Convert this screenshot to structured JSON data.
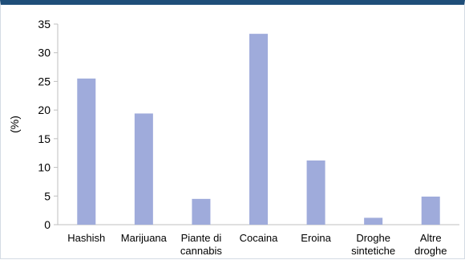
{
  "chart_data": {
    "type": "bar",
    "title": "",
    "xlabel": "",
    "ylabel": "(%)",
    "ylim": [
      0,
      35
    ],
    "yticks": [
      0,
      5,
      10,
      15,
      20,
      25,
      30,
      35
    ],
    "grid": false,
    "legend": "none",
    "bar_color": "#9fabdb",
    "categories": [
      [
        "Hashish"
      ],
      [
        "Marijuana"
      ],
      [
        "Piante di",
        "cannabis"
      ],
      [
        "Cocaina"
      ],
      [
        "Eroina"
      ],
      [
        "Droghe",
        "sintetiche"
      ],
      [
        "Altre",
        "droghe"
      ]
    ],
    "values": [
      25.5,
      19.4,
      4.5,
      33.3,
      11.2,
      1.2,
      4.9
    ]
  }
}
